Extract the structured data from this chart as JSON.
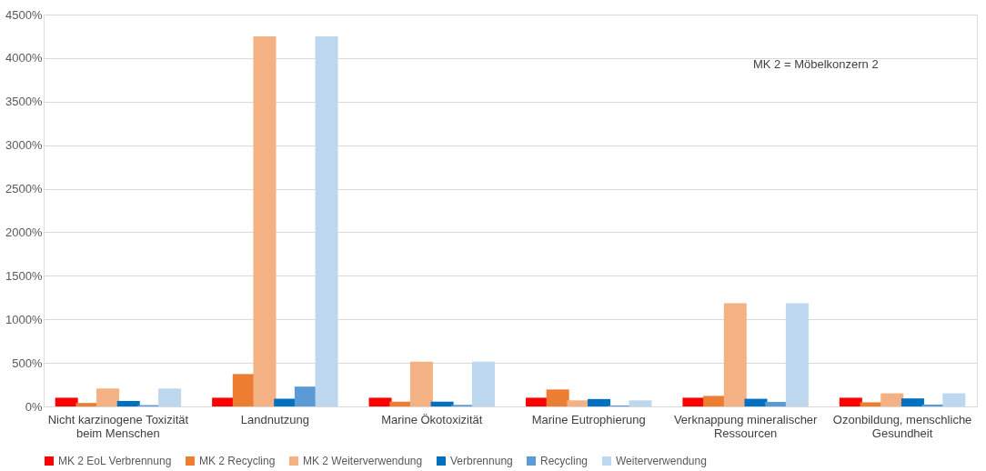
{
  "chart_data": {
    "type": "bar",
    "categories": [
      "Nicht karzinogene Toxizität\nbeim Menschen",
      "Landnutzung",
      "Marine Ökotoxizität",
      "Marine Eutrophierung",
      "Verknappung mineralischer\nRessourcen",
      "Ozonbildung, menschliche\nGesundheit"
    ],
    "series": [
      {
        "name": "MK 2 EoL Verbrennung",
        "color": "#ff0000",
        "values": [
          100,
          100,
          100,
          100,
          100,
          100
        ]
      },
      {
        "name": "MK 2 Recycling",
        "color": "#ed7d31",
        "values": [
          40,
          372,
          55,
          195,
          121,
          48
        ]
      },
      {
        "name": "MK 2 Weiterverwendung",
        "color": "#f4b183",
        "values": [
          206,
          4250,
          515,
          70,
          1185,
          151
        ]
      },
      {
        "name": "Verbrennung",
        "color": "#0070c0",
        "values": [
          63,
          88,
          55,
          85,
          88,
          92
        ]
      },
      {
        "name": "Recycling",
        "color": "#5b9bd5",
        "values": [
          15,
          228,
          18,
          11,
          52,
          22
        ]
      },
      {
        "name": "Weiterverwendung",
        "color": "#bdd7ee",
        "values": [
          206,
          4250,
          515,
          70,
          1185,
          151
        ]
      }
    ],
    "ylim": [
      0,
      4500
    ],
    "yticks": [
      {
        "value": 0,
        "label": "0%"
      },
      {
        "value": 500,
        "label": "500%"
      },
      {
        "value": 1000,
        "label": "1000%"
      },
      {
        "value": 1500,
        "label": "1500%"
      },
      {
        "value": 2000,
        "label": "2000%"
      },
      {
        "value": 2500,
        "label": "2500%"
      },
      {
        "value": 3000,
        "label": "3000%"
      },
      {
        "value": 3500,
        "label": "3500%"
      },
      {
        "value": 4000,
        "label": "4000%"
      },
      {
        "value": 4500,
        "label": "4500%"
      }
    ],
    "grid": "y",
    "legend": "bottom",
    "annotations": [
      "MK 2 = Möbelkonzern 2"
    ]
  }
}
